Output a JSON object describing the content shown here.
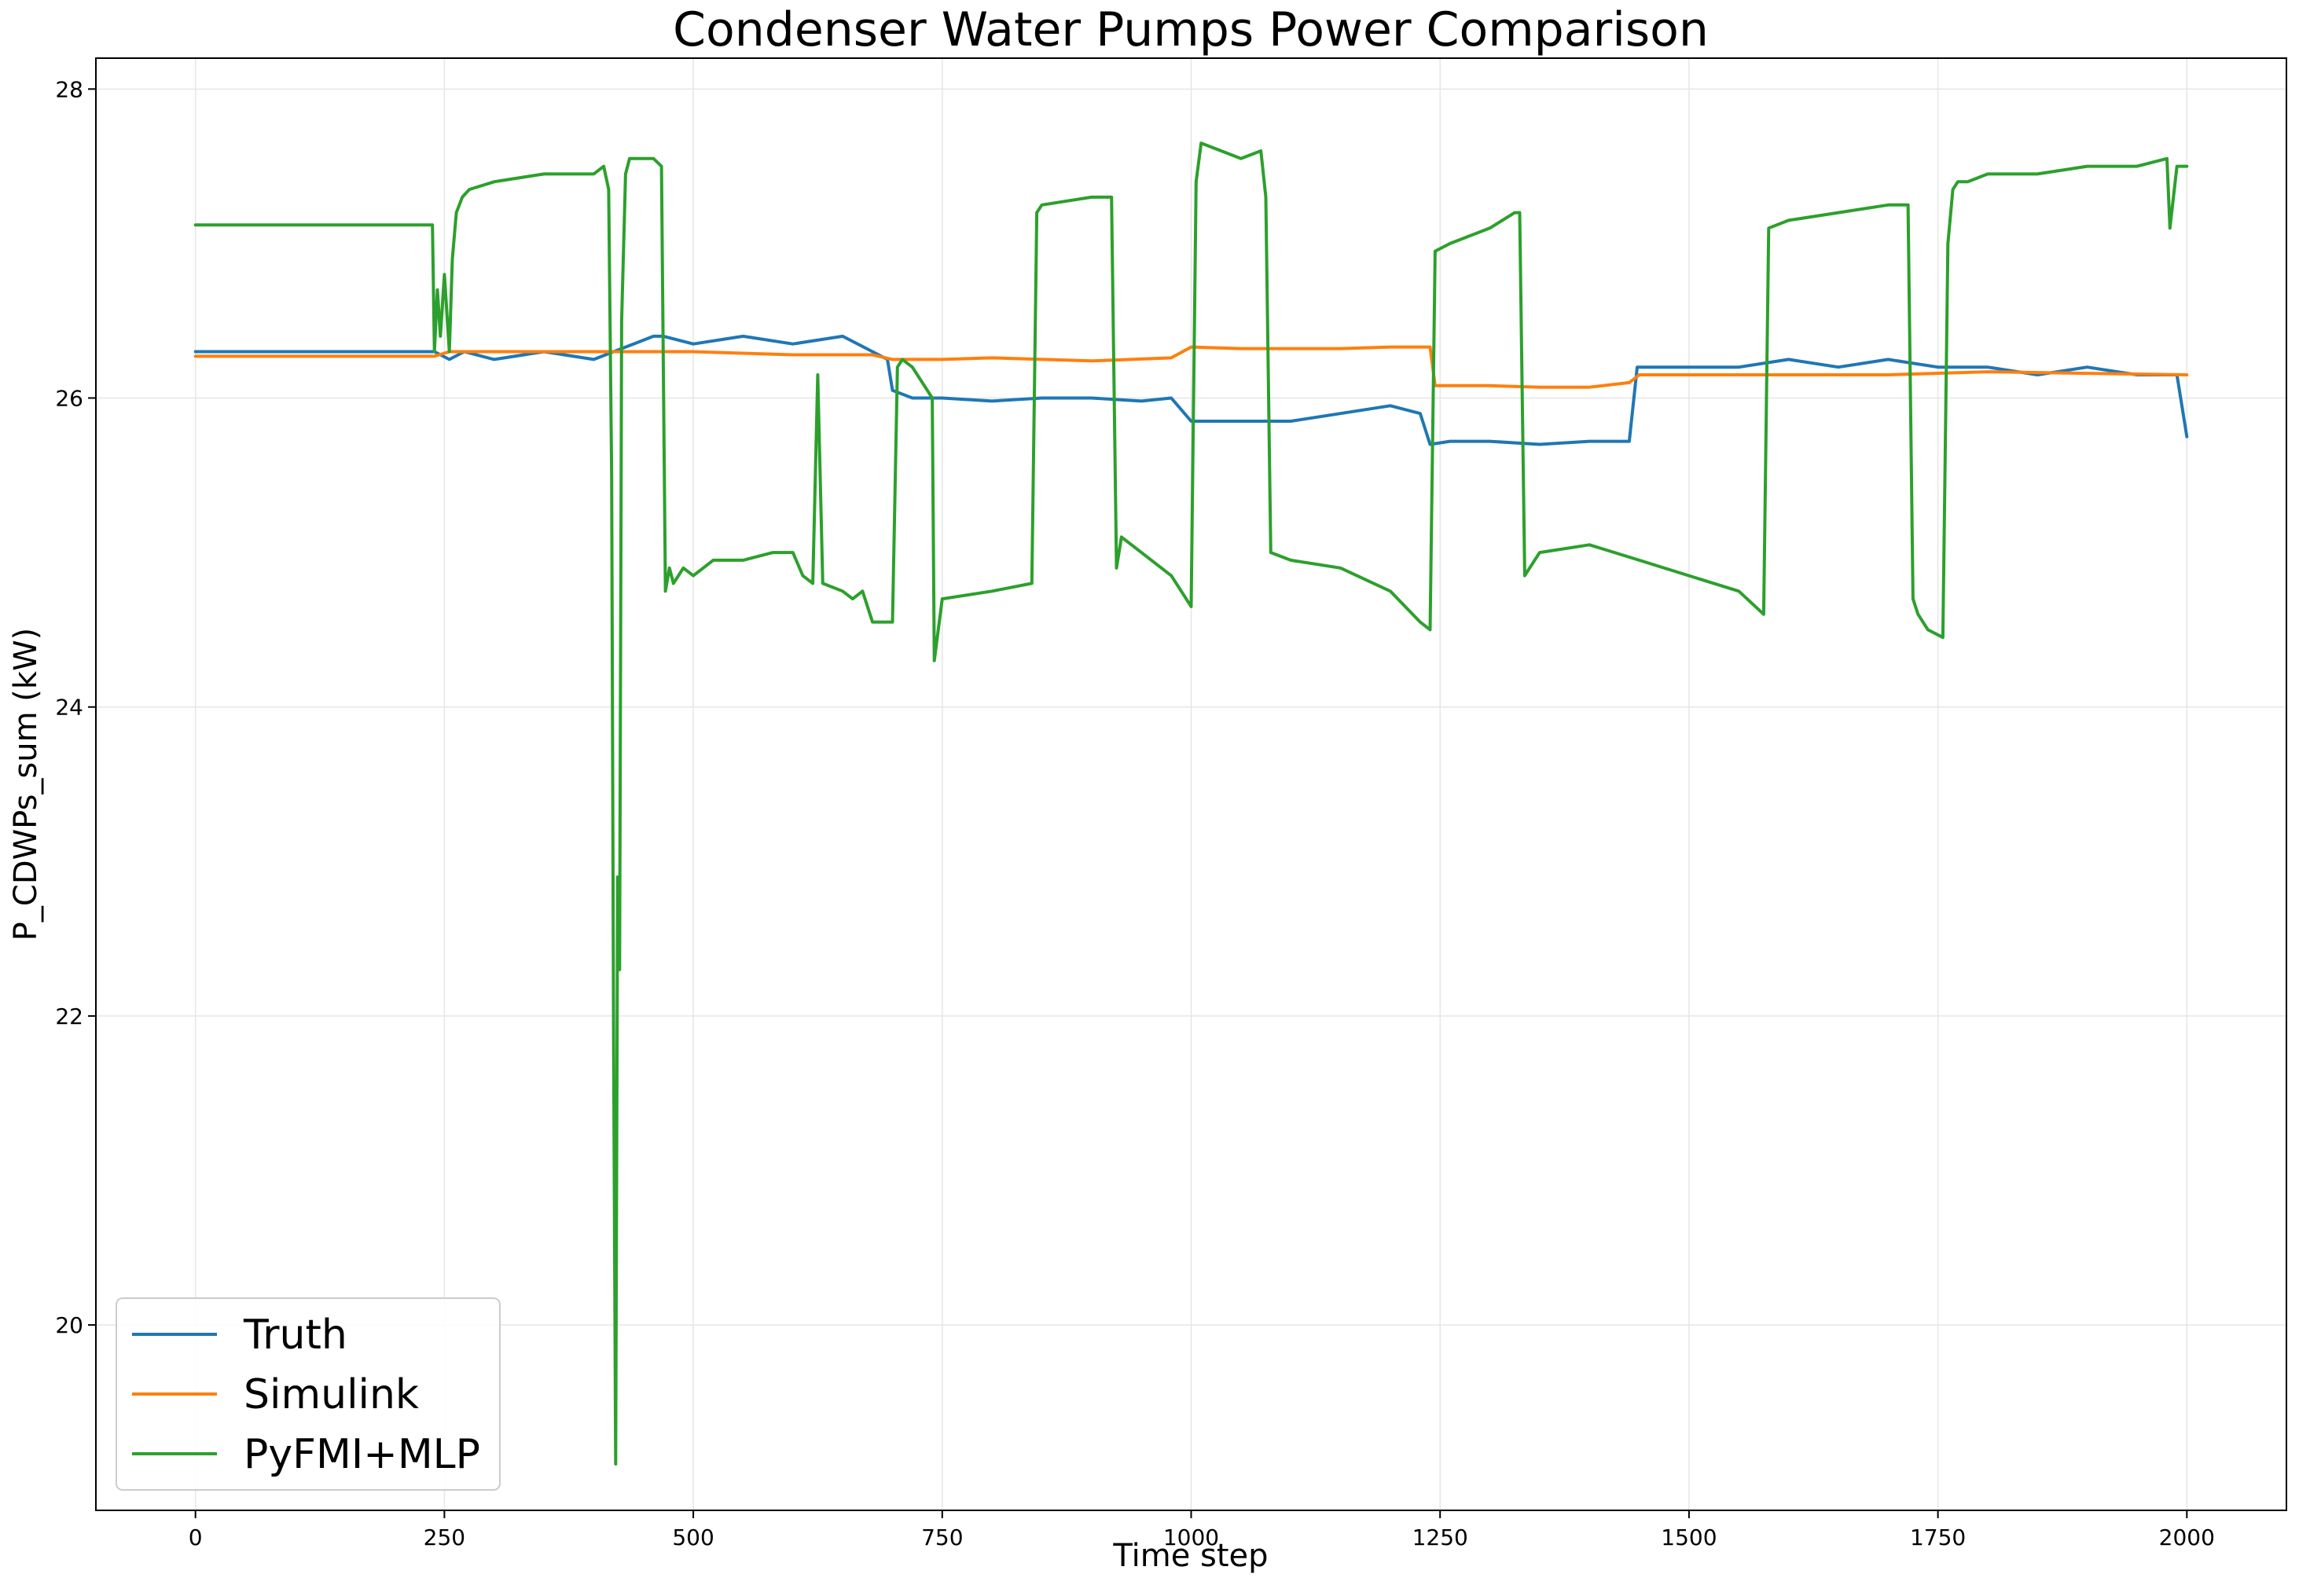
{
  "chart_data": {
    "type": "line",
    "title": "Condenser Water Pumps Power Comparison",
    "xlabel": "Time step",
    "ylabel": "P_CDWPs_sum (kW)",
    "xlim": [
      -100,
      2100
    ],
    "ylim": [
      18.8,
      28.2
    ],
    "x_ticks": [
      0,
      250,
      500,
      750,
      1000,
      1250,
      1500,
      1750,
      2000
    ],
    "y_ticks": [
      20,
      22,
      24,
      26,
      28
    ],
    "grid": true,
    "legend_position": "lower-left",
    "series": [
      {
        "name": "Truth",
        "color": "#1f77b4",
        "x": [
          0,
          240,
          255,
          270,
          300,
          350,
          400,
          420,
          440,
          460,
          470,
          500,
          550,
          600,
          650,
          680,
          695,
          700,
          720,
          750,
          800,
          850,
          900,
          950,
          980,
          1000,
          1050,
          1100,
          1150,
          1200,
          1230,
          1240,
          1260,
          1300,
          1350,
          1400,
          1440,
          1448,
          1460,
          1500,
          1550,
          1600,
          1650,
          1700,
          1750,
          1800,
          1850,
          1900,
          1950,
          1990,
          2000
        ],
        "y": [
          26.3,
          26.3,
          26.25,
          26.3,
          26.25,
          26.3,
          26.25,
          26.3,
          26.35,
          26.4,
          26.4,
          26.35,
          26.4,
          26.35,
          26.4,
          26.3,
          26.25,
          26.05,
          26.0,
          26.0,
          25.98,
          26.0,
          26.0,
          25.98,
          26.0,
          25.85,
          25.85,
          25.85,
          25.9,
          25.95,
          25.9,
          25.7,
          25.72,
          25.72,
          25.7,
          25.72,
          25.72,
          26.2,
          26.2,
          26.2,
          26.2,
          26.25,
          26.2,
          26.25,
          26.2,
          26.2,
          26.15,
          26.2,
          26.15,
          26.15,
          25.75
        ]
      },
      {
        "name": "Simulink",
        "color": "#ff7f0e",
        "x": [
          0,
          240,
          255,
          300,
          400,
          500,
          600,
          680,
          700,
          750,
          800,
          900,
          980,
          1000,
          1050,
          1100,
          1150,
          1200,
          1240,
          1245,
          1300,
          1350,
          1400,
          1440,
          1450,
          1500,
          1600,
          1700,
          1800,
          1900,
          2000
        ],
        "y": [
          26.27,
          26.27,
          26.3,
          26.3,
          26.3,
          26.3,
          26.28,
          26.28,
          26.25,
          26.25,
          26.26,
          26.24,
          26.26,
          26.33,
          26.32,
          26.32,
          26.32,
          26.33,
          26.33,
          26.08,
          26.08,
          26.07,
          26.07,
          26.1,
          26.15,
          26.15,
          26.15,
          26.15,
          26.17,
          26.16,
          26.15
        ]
      },
      {
        "name": "PyFMI+MLP",
        "color": "#2ca02c",
        "x": [
          0,
          238,
          240,
          243,
          246,
          250,
          255,
          258,
          262,
          268,
          275,
          300,
          350,
          400,
          410,
          415,
          418,
          420,
          422,
          424,
          426,
          428,
          432,
          436,
          440,
          460,
          468,
          472,
          476,
          480,
          490,
          500,
          520,
          550,
          580,
          600,
          610,
          620,
          625,
          630,
          650,
          660,
          670,
          680,
          690,
          700,
          705,
          710,
          720,
          740,
          742,
          750,
          800,
          840,
          845,
          850,
          900,
          920,
          925,
          930,
          950,
          980,
          995,
          1000,
          1005,
          1010,
          1050,
          1070,
          1075,
          1080,
          1100,
          1150,
          1200,
          1230,
          1240,
          1245,
          1260,
          1300,
          1325,
          1330,
          1335,
          1350,
          1400,
          1450,
          1500,
          1550,
          1575,
          1580,
          1600,
          1650,
          1700,
          1720,
          1725,
          1730,
          1740,
          1755,
          1760,
          1765,
          1770,
          1780,
          1800,
          1850,
          1900,
          1950,
          1980,
          1983,
          1990,
          2000
        ],
        "y": [
          27.12,
          27.12,
          26.3,
          26.7,
          26.4,
          26.8,
          26.3,
          26.9,
          27.2,
          27.3,
          27.35,
          27.4,
          27.45,
          27.45,
          27.5,
          27.35,
          25.5,
          21.8,
          19.1,
          22.9,
          22.3,
          26.5,
          27.45,
          27.55,
          27.55,
          27.55,
          27.5,
          24.75,
          24.9,
          24.8,
          24.9,
          24.85,
          24.95,
          24.95,
          25.0,
          25.0,
          24.85,
          24.8,
          26.15,
          24.8,
          24.75,
          24.7,
          24.75,
          24.55,
          24.55,
          24.55,
          26.2,
          26.25,
          26.2,
          26.0,
          24.3,
          24.7,
          24.75,
          24.8,
          27.2,
          27.25,
          27.3,
          27.3,
          24.9,
          25.1,
          25.0,
          24.85,
          24.7,
          24.65,
          27.4,
          27.65,
          27.55,
          27.6,
          27.3,
          25.0,
          24.95,
          24.9,
          24.75,
          24.55,
          24.5,
          26.95,
          27.0,
          27.1,
          27.2,
          27.2,
          24.85,
          25.0,
          25.05,
          24.95,
          24.85,
          24.75,
          24.6,
          27.1,
          27.15,
          27.2,
          27.25,
          27.25,
          24.7,
          24.6,
          24.5,
          24.45,
          27.0,
          27.35,
          27.4,
          27.4,
          27.45,
          27.45,
          27.5,
          27.5,
          27.55,
          27.1,
          27.5,
          27.5
        ]
      }
    ]
  }
}
